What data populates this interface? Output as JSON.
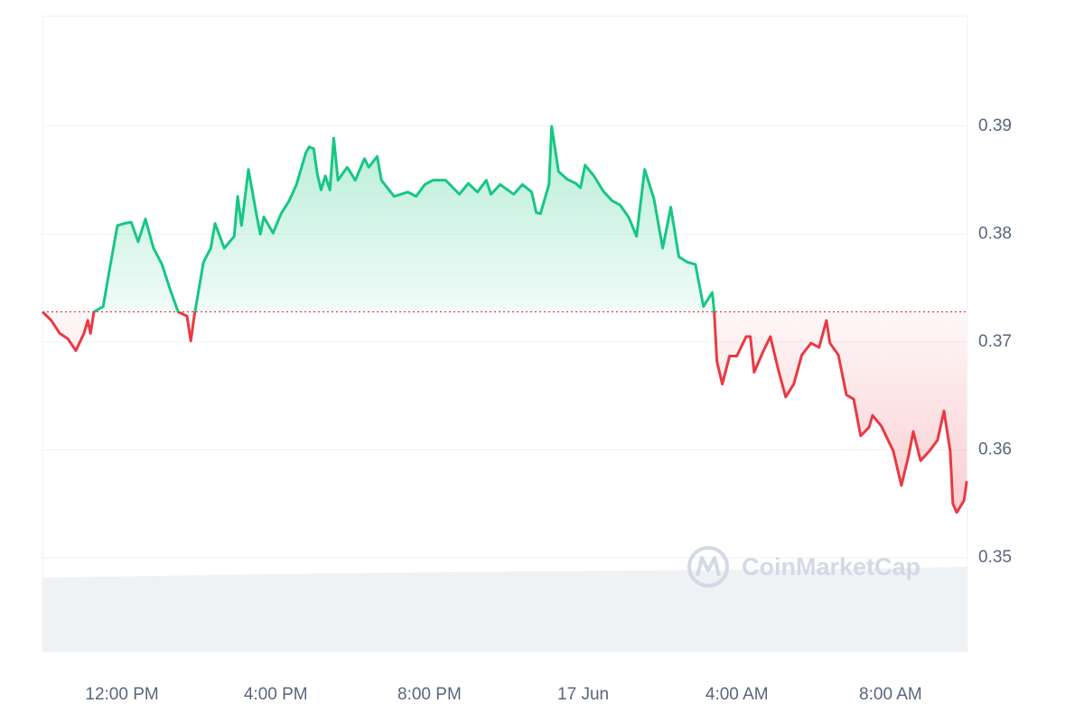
{
  "chart_data": {
    "type": "line",
    "watermark": "CoinMarketCap",
    "colors": {
      "up": "#16c784",
      "down": "#ea3943"
    },
    "grid": true,
    "xlim": [
      9.93,
      34.0
    ],
    "ylim": [
      0.3413,
      0.4002
    ],
    "yticks": [
      0.35,
      0.36,
      0.37,
      0.38,
      0.39
    ],
    "xticks": [
      {
        "value": 12,
        "label": "12:00 PM"
      },
      {
        "value": 16,
        "label": "4:00 PM"
      },
      {
        "value": 20,
        "label": "8:00 PM"
      },
      {
        "value": 24,
        "label": "17 Jun"
      },
      {
        "value": 28,
        "label": "4:00 AM"
      },
      {
        "value": 32,
        "label": "8:00 AM"
      }
    ],
    "x": [
      9.93,
      10.16,
      10.38,
      10.59,
      10.8,
      11.01,
      11.11,
      11.18,
      11.27,
      11.51,
      11.69,
      11.88,
      12.07,
      12.24,
      12.42,
      12.61,
      12.82,
      13.04,
      13.25,
      13.46,
      13.69,
      13.79,
      13.88,
      14.12,
      14.31,
      14.42,
      14.66,
      14.92,
      15.01,
      15.11,
      15.29,
      15.51,
      15.6,
      15.69,
      15.93,
      16.14,
      16.35,
      16.54,
      16.78,
      16.87,
      16.99,
      17.08,
      17.18,
      17.29,
      17.41,
      17.51,
      17.62,
      17.86,
      18.07,
      18.31,
      18.42,
      18.64,
      18.75,
      19.08,
      19.44,
      19.65,
      19.88,
      20.09,
      20.42,
      20.78,
      21.01,
      21.25,
      21.48,
      21.6,
      21.84,
      22.19,
      22.42,
      22.66,
      22.78,
      22.89,
      23.11,
      23.18,
      23.36,
      23.58,
      23.81,
      23.93,
      24.05,
      24.28,
      24.52,
      24.75,
      24.96,
      25.18,
      25.39,
      25.6,
      25.84,
      26.07,
      26.28,
      26.49,
      26.71,
      26.92,
      27.13,
      27.36,
      27.41,
      27.48,
      27.62,
      27.81,
      28.0,
      28.24,
      28.35,
      28.45,
      28.68,
      28.87,
      29.08,
      29.27,
      29.48,
      29.69,
      29.93,
      30.14,
      30.33,
      30.42,
      30.64,
      30.85,
      31.04,
      31.22,
      31.44,
      31.53,
      31.76,
      32.07,
      32.28,
      32.47,
      32.59,
      32.78,
      33.01,
      33.22,
      33.39,
      33.55,
      33.62,
      33.72,
      33.91,
      33.98
    ],
    "values": [
      0.3728,
      0.372,
      0.3708,
      0.3703,
      0.3692,
      0.3708,
      0.372,
      0.3708,
      0.3728,
      0.3733,
      0.377,
      0.3808,
      0.381,
      0.3811,
      0.3793,
      0.3814,
      0.3787,
      0.3772,
      0.3749,
      0.3728,
      0.3724,
      0.3701,
      0.3724,
      0.3774,
      0.3787,
      0.381,
      0.3787,
      0.3798,
      0.3835,
      0.3808,
      0.386,
      0.3816,
      0.38,
      0.3816,
      0.3801,
      0.3819,
      0.3831,
      0.3846,
      0.3875,
      0.3881,
      0.3879,
      0.3856,
      0.3841,
      0.3854,
      0.3841,
      0.3889,
      0.385,
      0.3862,
      0.385,
      0.387,
      0.3862,
      0.3872,
      0.385,
      0.3835,
      0.3839,
      0.3835,
      0.3846,
      0.385,
      0.385,
      0.3837,
      0.3847,
      0.3839,
      0.385,
      0.3837,
      0.3846,
      0.3837,
      0.3846,
      0.3839,
      0.382,
      0.3819,
      0.3846,
      0.39,
      0.3858,
      0.3851,
      0.3847,
      0.3843,
      0.3864,
      0.3854,
      0.384,
      0.3831,
      0.3827,
      0.3816,
      0.3798,
      0.386,
      0.3833,
      0.3787,
      0.3825,
      0.3779,
      0.3774,
      0.3772,
      0.3733,
      0.3746,
      0.3728,
      0.3682,
      0.3661,
      0.3687,
      0.3687,
      0.3705,
      0.3705,
      0.3672,
      0.3691,
      0.3705,
      0.3674,
      0.3649,
      0.3661,
      0.3688,
      0.3699,
      0.3695,
      0.372,
      0.3699,
      0.3688,
      0.3651,
      0.3647,
      0.3613,
      0.3621,
      0.3632,
      0.3622,
      0.3599,
      0.3567,
      0.3595,
      0.3617,
      0.359,
      0.3599,
      0.3609,
      0.3636,
      0.3599,
      0.355,
      0.3542,
      0.3553,
      0.3571
    ]
  }
}
